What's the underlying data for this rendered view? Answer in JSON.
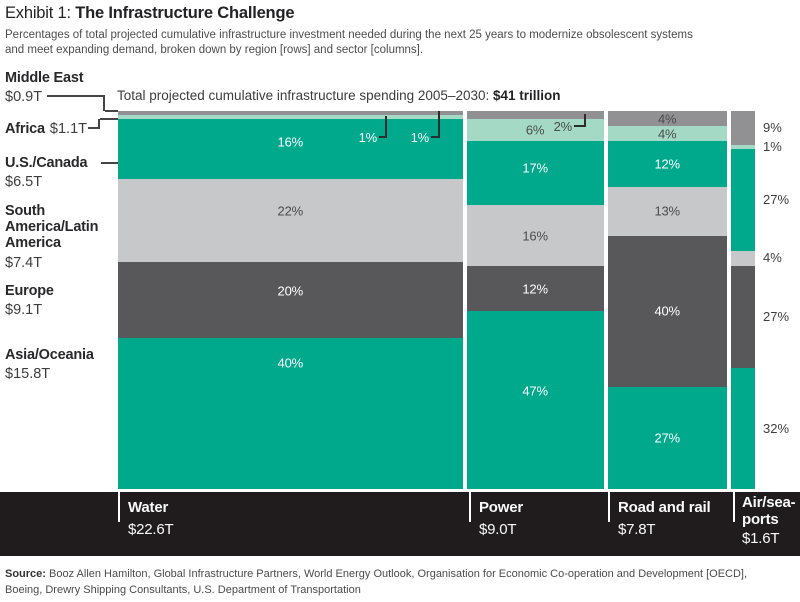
{
  "header": {
    "exhibit_label": "Exhibit 1: ",
    "title": "The Infrastructure Challenge",
    "subtitle_line1": "Percentages of total projected cumulative infrastructure investment needed during the next 25 years to modernize obsolescent systems",
    "subtitle_line2": "and meet expanding demand, broken down by region [rows] and sector [columns]."
  },
  "annotation": {
    "text": "Total projected cumulative infrastructure spending 2005–2030: ",
    "value": "$41 trillion"
  },
  "regions": [
    {
      "name": "Middle East",
      "value": "$0.9T",
      "color": "#919194",
      "ink": "#4c4c4e"
    },
    {
      "name": "Africa",
      "value": "$1.1T",
      "color": "#a3d9c5",
      "ink": "#4c4c4e"
    },
    {
      "name": "U.S./Canada",
      "value": "$6.5T",
      "color": "#00a98b",
      "ink": "#ffffff"
    },
    {
      "name": "South America/Latin America",
      "value": "$7.4T",
      "color": "#c7c8ca",
      "ink": "#4c4c4e"
    },
    {
      "name": "Europe",
      "value": "$9.1T",
      "color": "#58585b",
      "ink": "#ffffff"
    },
    {
      "name": "Asia/Oceania",
      "value": "$15.8T",
      "color": "#00a98b",
      "ink": "#ffffff"
    }
  ],
  "chart_data": {
    "type": "mosaic",
    "total_spending": "$41 trillion",
    "period": "2005–2030",
    "row_order": [
      "Middle East",
      "Africa",
      "U.S./Canada",
      "South America/Latin America",
      "Europe",
      "Asia/Oceania"
    ],
    "columns": [
      {
        "name": "Water",
        "total": "$22.6T",
        "trillions": 22.6,
        "segments": [
          {
            "pct": 1,
            "label": "1%",
            "display": "callout"
          },
          {
            "pct": 1,
            "label": "1%",
            "display": "callout"
          },
          {
            "pct": 16,
            "label": "16%",
            "display": "inside"
          },
          {
            "pct": 22,
            "label": "22%",
            "display": "inside"
          },
          {
            "pct": 20,
            "label": "20%",
            "display": "inside"
          },
          {
            "pct": 40,
            "label": "40%",
            "display": "inside"
          }
        ]
      },
      {
        "name": "Power",
        "total": "$9.0T",
        "trillions": 9.0,
        "segments": [
          {
            "pct": 2,
            "label": "2%",
            "display": "callout"
          },
          {
            "pct": 6,
            "label": "6%",
            "display": "inside"
          },
          {
            "pct": 17,
            "label": "17%",
            "display": "inside"
          },
          {
            "pct": 16,
            "label": "16%",
            "display": "inside"
          },
          {
            "pct": 12,
            "label": "12%",
            "display": "inside"
          },
          {
            "pct": 47,
            "label": "47%",
            "display": "inside"
          }
        ]
      },
      {
        "name": "Road and rail",
        "total": "$7.8T",
        "trillions": 7.8,
        "segments": [
          {
            "pct": 4,
            "label": "4%",
            "display": "inside"
          },
          {
            "pct": 4,
            "label": "4%",
            "display": "inside"
          },
          {
            "pct": 12,
            "label": "12%",
            "display": "inside"
          },
          {
            "pct": 13,
            "label": "13%",
            "display": "inside"
          },
          {
            "pct": 40,
            "label": "40%",
            "display": "inside"
          },
          {
            "pct": 27,
            "label": "27%",
            "display": "inside"
          }
        ]
      },
      {
        "name": "Air/sea-ports",
        "total": "$1.6T",
        "trillions": 1.6,
        "segments": [
          {
            "pct": 9,
            "label": "9%",
            "display": "right"
          },
          {
            "pct": 1,
            "label": "1%",
            "display": "right"
          },
          {
            "pct": 27,
            "label": "27%",
            "display": "right"
          },
          {
            "pct": 4,
            "label": "4%",
            "display": "right"
          },
          {
            "pct": 27,
            "label": "27%",
            "display": "right"
          },
          {
            "pct": 32,
            "label": "32%",
            "display": "right"
          }
        ]
      }
    ]
  },
  "source": {
    "label": "Source: ",
    "line1": "Booz Allen Hamilton, Global Infrastructure Partners, World Energy Outlook, Organisation for Economic Co-operation and Development [OECD],",
    "line2": "Boeing, Drewry Shipping Consultants, U.S. Department of Transportation"
  }
}
